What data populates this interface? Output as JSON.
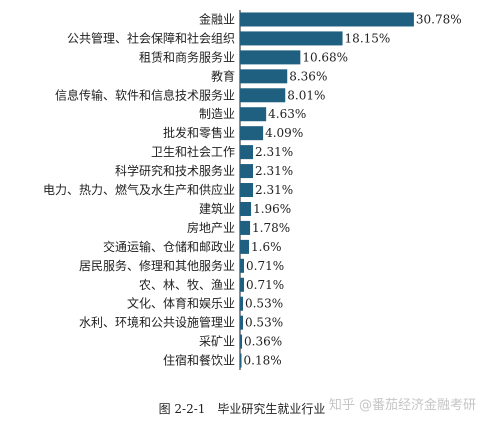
{
  "chart_data": {
    "type": "bar",
    "orientation": "horizontal",
    "categories": [
      "金融业",
      "公共管理、社会保障和社会组织",
      "租赁和商务服务业",
      "教育",
      "信息传输、软件和信息技术服务业",
      "制造业",
      "批发和零售业",
      "卫生和社会工作",
      "科学研究和技术服务业",
      "电力、热力、燃气及水生产和供应业",
      "建筑业",
      "房地产业",
      "交通运输、仓储和邮政业",
      "居民服务、修理和其他服务业",
      "农、林、牧、渔业",
      "文化、体育和娱乐业",
      "水利、环境和公共设施管理业",
      "采矿业",
      "住宿和餐饮业"
    ],
    "values": [
      30.78,
      18.15,
      10.68,
      8.36,
      8.01,
      4.63,
      4.09,
      2.31,
      2.31,
      2.31,
      1.96,
      1.78,
      1.6,
      0.71,
      0.71,
      0.53,
      0.53,
      0.36,
      0.18
    ],
    "value_labels": [
      "30.78%",
      "18.15%",
      "10.68%",
      "8.36%",
      "8.01%",
      "4.63%",
      "4.09%",
      "2.31%",
      "2.31%",
      "2.31%",
      "1.96%",
      "1.78%",
      "1.6%",
      "0.71%",
      "0.71%",
      "0.53%",
      "0.53%",
      "0.36%",
      "0.18%"
    ],
    "bar_color": "#1f5f7f",
    "title": "",
    "xlabel": "",
    "ylabel": "",
    "grid": false,
    "legend": "none"
  },
  "caption": {
    "number": "图 2-2-1",
    "text": "毕业研究生就业行业"
  },
  "watermark": "知乎 @番茄经济金融考研"
}
